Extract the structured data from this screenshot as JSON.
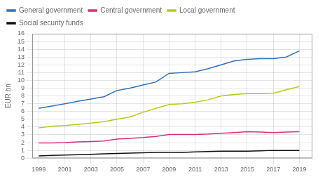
{
  "chart_data": {
    "type": "line",
    "x": [
      1999,
      2000,
      2001,
      2002,
      2003,
      2004,
      2005,
      2006,
      2007,
      2008,
      2009,
      2010,
      2011,
      2012,
      2013,
      2014,
      2015,
      2016,
      2017,
      2018,
      2019
    ],
    "series": [
      {
        "name": "General government",
        "color": "#3070b8",
        "values": [
          6.4,
          6.7,
          7.0,
          7.3,
          7.6,
          7.9,
          8.7,
          9.0,
          9.4,
          9.8,
          10.9,
          11.0,
          11.1,
          11.5,
          12.0,
          12.5,
          12.7,
          12.8,
          12.8,
          13.0,
          13.8
        ]
      },
      {
        "name": "Central government",
        "color": "#d63080",
        "values": [
          1.95,
          1.95,
          2.0,
          2.1,
          2.15,
          2.2,
          2.45,
          2.55,
          2.65,
          2.8,
          3.05,
          3.05,
          3.05,
          3.1,
          3.2,
          3.3,
          3.4,
          3.35,
          3.3,
          3.35,
          3.4
        ]
      },
      {
        "name": "Local government",
        "color": "#b8c820",
        "values": [
          3.9,
          4.1,
          4.2,
          4.35,
          4.5,
          4.7,
          5.0,
          5.3,
          5.9,
          6.4,
          6.9,
          7.0,
          7.2,
          7.5,
          8.0,
          8.2,
          8.3,
          8.3,
          8.35,
          8.8,
          9.2
        ]
      },
      {
        "name": "Social security funds",
        "color": "#101010",
        "values": [
          0.3,
          0.35,
          0.4,
          0.45,
          0.5,
          0.55,
          0.6,
          0.65,
          0.7,
          0.75,
          0.75,
          0.75,
          0.8,
          0.85,
          0.9,
          0.9,
          0.9,
          0.95,
          1.0,
          1.0,
          1.0
        ]
      }
    ],
    "ylabel": "EUR bn",
    "xlim": [
      1998.5,
      2020
    ],
    "xticks": [
      1999,
      2001,
      2003,
      2005,
      2007,
      2009,
      2011,
      2013,
      2015,
      2017,
      2019
    ],
    "ylim": [
      0,
      16
    ],
    "yticks": [
      0,
      1,
      2,
      3,
      4,
      5,
      6,
      7,
      8,
      9,
      10,
      11,
      12,
      13,
      14,
      15,
      16
    ],
    "grid": true,
    "legend": "upper left"
  }
}
